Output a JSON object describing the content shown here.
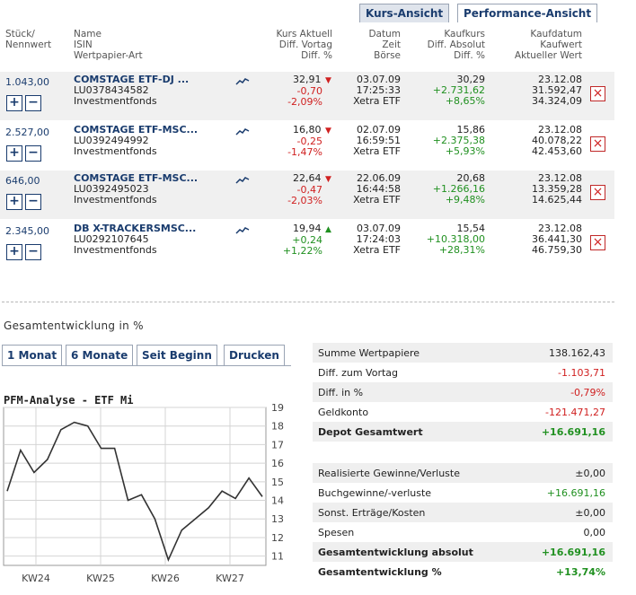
{
  "view_tabs": [
    "Kurs-Ansicht",
    "Performance-Ansicht"
  ],
  "headers": {
    "qty": [
      "Stück/",
      "Nennwert"
    ],
    "name": [
      "Name",
      "ISIN",
      "Wertpapier-Art"
    ],
    "kurs": [
      "Kurs Aktuell",
      "Diff. Vortag",
      "Diff. %"
    ],
    "datum": [
      "Datum",
      "Zeit",
      "Börse"
    ],
    "kauf": [
      "Kaufkurs",
      "Diff. Absolut",
      "Diff. %"
    ],
    "kd": [
      "Kaufdatum",
      "Kaufwert",
      "Aktueller Wert"
    ]
  },
  "rows": [
    {
      "qty": "1.043,00",
      "name": "COMSTAGE ETF-DJ ...",
      "isin": "LU0378434582",
      "art": "Investmentfonds",
      "kurs": "32,91",
      "diff": "-0,70",
      "pct": "-2,09%",
      "trend": "down",
      "datum": "03.07.09",
      "zeit": "17:25:33",
      "boerse": "Xetra ETF",
      "kaufkurs": "30,29",
      "diffabs": "+2.731,62",
      "diffpct": "+8,65%",
      "kaufdatum": "23.12.08",
      "kaufwert": "31.592,47",
      "aktwert": "34.324,09"
    },
    {
      "qty": "2.527,00",
      "name": "COMSTAGE ETF-MSC...",
      "isin": "LU0392494992",
      "art": "Investmentfonds",
      "kurs": "16,80",
      "diff": "-0,25",
      "pct": "-1,47%",
      "trend": "down",
      "datum": "02.07.09",
      "zeit": "16:59:51",
      "boerse": "Xetra ETF",
      "kaufkurs": "15,86",
      "diffabs": "+2.375,38",
      "diffpct": "+5,93%",
      "kaufdatum": "23.12.08",
      "kaufwert": "40.078,22",
      "aktwert": "42.453,60"
    },
    {
      "qty": "646,00",
      "name": "COMSTAGE ETF-MSC...",
      "isin": "LU0392495023",
      "art": "Investmentfonds",
      "kurs": "22,64",
      "diff": "-0,47",
      "pct": "-2,03%",
      "trend": "down",
      "datum": "22.06.09",
      "zeit": "16:44:58",
      "boerse": "Xetra ETF",
      "kaufkurs": "20,68",
      "diffabs": "+1.266,16",
      "diffpct": "+9,48%",
      "kaufdatum": "23.12.08",
      "kaufwert": "13.359,28",
      "aktwert": "14.625,44"
    },
    {
      "qty": "2.345,00",
      "name": "DB X-TRACKERSMSC...",
      "isin": "LU0292107645",
      "art": "Investmentfonds",
      "kurs": "19,94",
      "diff": "+0,24",
      "pct": "+1,22%",
      "trend": "up",
      "datum": "03.07.09",
      "zeit": "17:24:03",
      "boerse": "Xetra ETF",
      "kaufkurs": "15,54",
      "diffabs": "+10.318,00",
      "diffpct": "+28,31%",
      "kaufdatum": "23.12.08",
      "kaufwert": "36.441,30",
      "aktwert": "46.759,30"
    }
  ],
  "section_title": "Gesamtentwicklung in %",
  "period_tabs": [
    "1 Monat",
    "6 Monate",
    "Seit Beginn",
    "Drucken"
  ],
  "chart_title": "PFM-Analyse - ETF Mi",
  "summary": [
    {
      "label": "Summe Wertpapiere",
      "value": "138.162,43",
      "tone": "neutral",
      "bold": false,
      "shade": true
    },
    {
      "label": "Diff. zum Vortag",
      "value": "-1.103,71",
      "tone": "neg",
      "bold": false,
      "shade": false
    },
    {
      "label": "Diff. in %",
      "value": "-0,79%",
      "tone": "neg",
      "bold": false,
      "shade": true
    },
    {
      "label": "Geldkonto",
      "value": "-121.471,27",
      "tone": "neg",
      "bold": false,
      "shade": false
    },
    {
      "label": "Depot Gesamtwert",
      "value": "+16.691,16",
      "tone": "pos",
      "bold": true,
      "shade": true
    },
    {
      "label": "Realisierte Gewinne/Verluste",
      "value": "±0,00",
      "tone": "neutral",
      "bold": false,
      "shade": true
    },
    {
      "label": "Buchgewinne/-verluste",
      "value": "+16.691,16",
      "tone": "pos",
      "bold": false,
      "shade": false
    },
    {
      "label": "Sonst. Erträge/Kosten",
      "value": "±0,00",
      "tone": "neutral",
      "bold": false,
      "shade": true
    },
    {
      "label": "Spesen",
      "value": "0,00",
      "tone": "neutral",
      "bold": false,
      "shade": false
    },
    {
      "label": "Gesamtentwicklung absolut",
      "value": "+16.691,16",
      "tone": "pos",
      "bold": true,
      "shade": true
    },
    {
      "label": "Gesamtentwicklung %",
      "value": "+13,74%",
      "tone": "pos",
      "bold": true,
      "shade": false
    }
  ],
  "chart_data": {
    "type": "line",
    "title": "PFM-Analyse - ETF Mi",
    "xlabel": "",
    "ylabel": "",
    "ylim": [
      10.5,
      19
    ],
    "yticks": [
      11,
      12,
      13,
      14,
      15,
      16,
      17,
      18,
      19
    ],
    "x_tick_labels": [
      "KW24",
      "KW25",
      "KW26",
      "KW27"
    ],
    "grid": true,
    "series": [
      {
        "values": [
          14.5,
          16.7,
          15.5,
          16.2,
          17.8,
          18.2,
          18.0,
          16.8,
          16.8,
          14.0,
          14.3,
          13.0,
          10.8,
          12.4,
          13.0,
          13.6,
          14.5,
          14.1,
          15.2,
          14.2
        ]
      }
    ]
  }
}
